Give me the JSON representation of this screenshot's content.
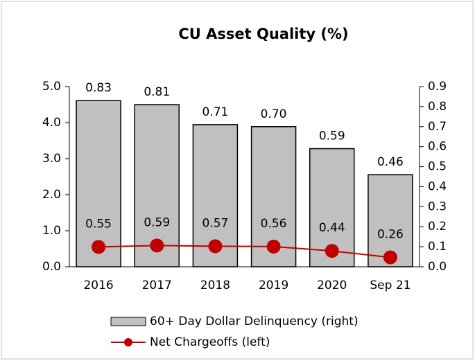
{
  "chart_data": {
    "type": "bar",
    "title": "CU Asset Quality (%)",
    "categories": [
      "2016",
      "2017",
      "2018",
      "2019",
      "2020",
      "Sep 21"
    ],
    "series": [
      {
        "name": "60+ Day Dollar Delinquency (right)",
        "type": "bar",
        "axis": "y2",
        "color": "#c0c0c0",
        "values": [
          0.83,
          0.81,
          0.71,
          0.7,
          0.59,
          0.46
        ],
        "value_labels": [
          "0.83",
          "0.81",
          "0.71",
          "0.70",
          "0.59",
          "0.46"
        ]
      },
      {
        "name": "Net Chargeoffs (left)",
        "type": "line",
        "axis": "y",
        "color": "#c00000",
        "values": [
          0.55,
          0.59,
          0.57,
          0.56,
          0.44,
          0.26
        ],
        "value_labels": [
          "0.55",
          "0.59",
          "0.57",
          "0.56",
          "0.44",
          "0.26"
        ]
      }
    ],
    "ylim": [
      0,
      5
    ],
    "yticks": [
      {
        "value": 0,
        "label": "0.0"
      },
      {
        "value": 1,
        "label": "1.0"
      },
      {
        "value": 2,
        "label": "2.0"
      },
      {
        "value": 3,
        "label": "3.0"
      },
      {
        "value": 4,
        "label": "4.0"
      },
      {
        "value": 5,
        "label": "5.0"
      }
    ],
    "y2lim": [
      0,
      0.9
    ],
    "y2ticks": [
      {
        "value": 0,
        "label": "0.0"
      },
      0.1,
      0.2,
      0.3,
      0.4,
      0.5,
      0.6,
      0.7,
      0.8,
      0.9
    ],
    "legend": "bottom"
  }
}
